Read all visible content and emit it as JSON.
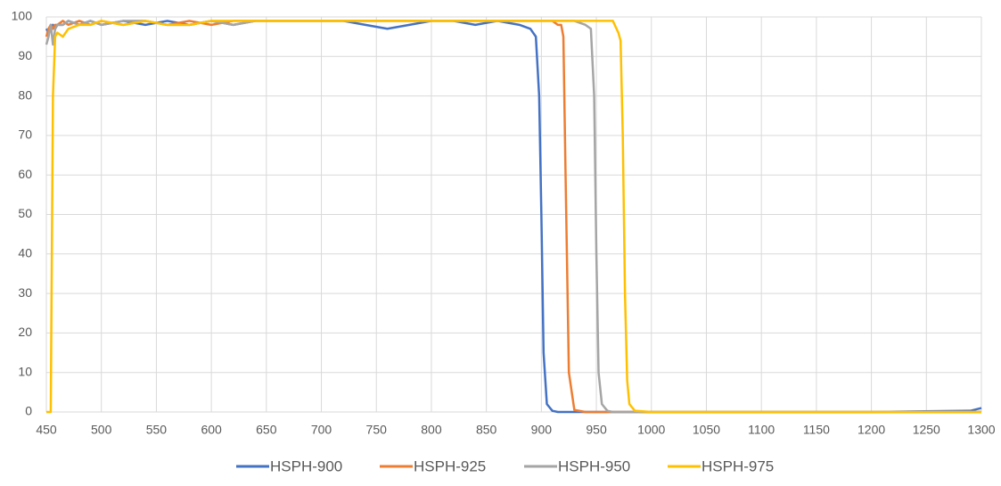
{
  "chart_data": {
    "type": "line",
    "x": [
      450,
      452,
      454,
      456,
      458,
      460,
      465,
      470,
      480,
      490,
      500,
      520,
      540,
      560,
      580,
      600,
      620,
      640,
      660,
      680,
      700,
      720,
      740,
      760,
      780,
      800,
      820,
      840,
      860,
      880,
      890,
      895,
      898,
      900,
      902,
      905,
      910,
      915,
      918,
      920,
      922,
      925,
      930,
      940,
      945,
      948,
      950,
      952,
      955,
      960,
      965,
      970,
      972,
      974,
      976,
      978,
      980,
      985,
      1000,
      1100,
      1200,
      1290,
      1300
    ],
    "series": [
      {
        "name": "HSPH-900",
        "color": "#4472c4",
        "values": [
          97,
          96,
          97,
          98,
          97,
          98,
          98,
          99,
          98,
          99,
          98,
          99,
          98,
          99,
          98,
          99,
          98,
          99,
          99,
          99,
          99,
          99,
          98,
          97,
          98,
          99,
          99,
          98,
          99,
          98,
          97,
          95,
          80,
          50,
          15,
          2,
          0.3,
          0,
          0,
          0,
          0,
          0,
          0,
          0,
          0,
          0,
          0,
          0,
          0,
          0,
          0,
          0,
          0,
          0,
          0,
          0,
          0,
          0,
          0,
          0,
          0,
          0.3,
          1
        ]
      },
      {
        "name": "HSPH-925",
        "color": "#ed7d31",
        "values": [
          95,
          97,
          98,
          97,
          98,
          98,
          99,
          98,
          99,
          98,
          99,
          98,
          99,
          98,
          99,
          98,
          99,
          99,
          99,
          99,
          99,
          99,
          99,
          99,
          99,
          99,
          99,
          99,
          99,
          99,
          99,
          99,
          99,
          99,
          99,
          99,
          99,
          98,
          98,
          95,
          60,
          10,
          0.5,
          0,
          0,
          0,
          0,
          0,
          0,
          0,
          0,
          0,
          0,
          0,
          0,
          0,
          0,
          0,
          0,
          0,
          0,
          0,
          0
        ]
      },
      {
        "name": "HSPH-950",
        "color": "#a5a5a5",
        "values": [
          93,
          95,
          98,
          93,
          97,
          98,
          98,
          99,
          98,
          99,
          98,
          99,
          99,
          98,
          98,
          99,
          98,
          99,
          99,
          99,
          99,
          99,
          99,
          99,
          99,
          99,
          99,
          99,
          99,
          99,
          99,
          99,
          99,
          99,
          99,
          99,
          99,
          99,
          99,
          99,
          99,
          99,
          99,
          98,
          97,
          80,
          40,
          10,
          2,
          0.3,
          0,
          0,
          0,
          0,
          0,
          0,
          0,
          0,
          0,
          0,
          0,
          0,
          0
        ]
      },
      {
        "name": "HSPH-975",
        "color": "#ffc000",
        "values": [
          0,
          0,
          0,
          80,
          95,
          96,
          95,
          97,
          98,
          98,
          99,
          98,
          99,
          98,
          98,
          99,
          99,
          99,
          99,
          99,
          99,
          99,
          99,
          99,
          99,
          99,
          99,
          99,
          99,
          99,
          99,
          99,
          99,
          99,
          99,
          99,
          99,
          99,
          99,
          99,
          99,
          99,
          99,
          99,
          99,
          99,
          99,
          99,
          99,
          99,
          99,
          96,
          94,
          70,
          30,
          8,
          2,
          0.3,
          0,
          0,
          0,
          0,
          0
        ]
      }
    ],
    "xlim": [
      450,
      1300
    ],
    "xticks": [
      450,
      500,
      550,
      600,
      650,
      700,
      750,
      800,
      850,
      900,
      950,
      1000,
      1050,
      1100,
      1150,
      1200,
      1250,
      1300
    ],
    "ylim": [
      0,
      100
    ],
    "yticks": [
      0,
      10,
      20,
      30,
      40,
      50,
      60,
      70,
      80,
      90,
      100
    ],
    "grid": true,
    "legend": "bottom"
  }
}
